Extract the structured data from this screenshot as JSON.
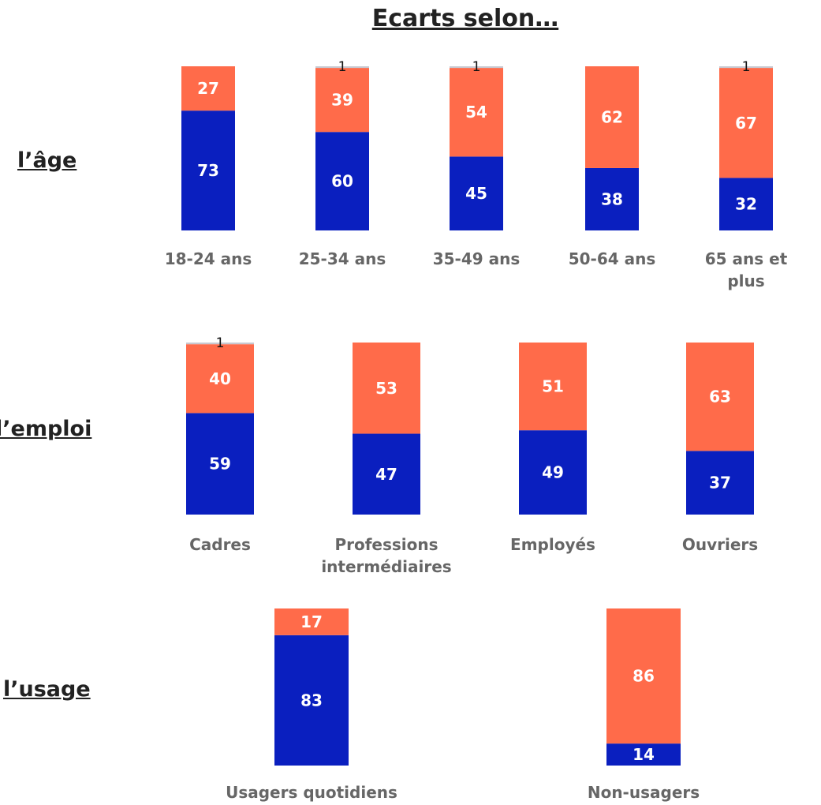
{
  "page_title": "Ecarts selon…",
  "colors": {
    "blue": "#0a1fbf",
    "orange": "#ff6b4a",
    "grey": "#c8c8d0"
  },
  "sections": [
    {
      "label": "l’âge"
    },
    {
      "label": "l’emploi"
    },
    {
      "label": "l’usage"
    }
  ],
  "chart_data": [
    {
      "type": "bar",
      "title": "l’âge",
      "categories": [
        "18-24 ans",
        "25-34 ans",
        "35-49 ans",
        "50-64 ans",
        "65 ans et plus"
      ],
      "series": [
        {
          "values": [
            73,
            60,
            45,
            38,
            32
          ]
        },
        {
          "values": [
            27,
            39,
            54,
            62,
            67
          ]
        },
        {
          "values": [
            0,
            1,
            1,
            0,
            1
          ]
        }
      ],
      "stacked": true,
      "ylim": [
        0,
        100
      ]
    },
    {
      "type": "bar",
      "title": "l’emploi",
      "categories": [
        "Cadres",
        "Professions intermédiaires",
        "Employés",
        "Ouvriers"
      ],
      "series": [
        {
          "values": [
            59,
            47,
            49,
            37
          ]
        },
        {
          "values": [
            40,
            53,
            51,
            63
          ]
        },
        {
          "values": [
            1,
            0,
            0,
            0
          ]
        }
      ],
      "stacked": true,
      "ylim": [
        0,
        100
      ]
    },
    {
      "type": "bar",
      "title": "l’usage",
      "categories": [
        "Usagers quotidiens",
        "Non-usagers"
      ],
      "series": [
        {
          "values": [
            83,
            14
          ]
        },
        {
          "values": [
            17,
            86
          ]
        },
        {
          "values": [
            0,
            0
          ]
        }
      ],
      "stacked": true,
      "ylim": [
        0,
        100
      ]
    }
  ]
}
